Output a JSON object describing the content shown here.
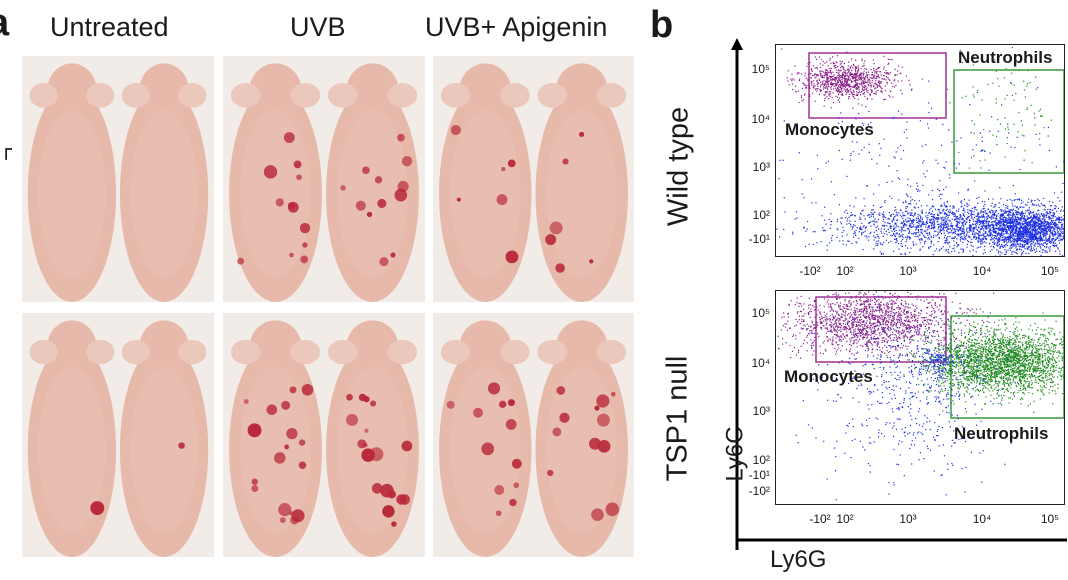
{
  "panel_a": {
    "letter": "a",
    "columns": [
      "Untreated",
      "UVB",
      "UVB+ Apigenin"
    ],
    "rows": [
      "Wild type",
      "TSP1 null"
    ],
    "row_label_cut": "¬"
  },
  "panel_b": {
    "letter": "b",
    "x_axis_title": "Ly6G",
    "y_axis_title": "Ly6C",
    "plots": [
      {
        "row": "Wild type",
        "gates": [
          {
            "label": "Monocytes",
            "color": "#a0309a"
          },
          {
            "label": "Neutrophils",
            "color": "#3a9a3a"
          }
        ],
        "y_ticks": [
          "10⁵",
          "10⁴",
          "10³",
          "10²",
          "-10¹"
        ],
        "x_ticks": [
          "-10²",
          "10²",
          "10³",
          "10⁴",
          "10⁵"
        ]
      },
      {
        "row": "TSP1 null",
        "gates": [
          {
            "label": "Monocytes",
            "color": "#a0309a"
          },
          {
            "label": "Neutrophils",
            "color": "#3a9a3a"
          }
        ],
        "y_ticks": [
          "10⁵",
          "10⁴",
          "10³",
          "10²",
          "-10¹",
          "-10²"
        ],
        "x_ticks": [
          "-10²",
          "10²",
          "10³",
          "10⁴",
          "10⁵"
        ]
      }
    ]
  },
  "colors": {
    "skin": "#e7b9aa",
    "lesion": "#b8283a",
    "monocytes": "#8a1f8a",
    "neutrophils": "#1f8a1f",
    "other_cells": "#1d2fe0"
  }
}
